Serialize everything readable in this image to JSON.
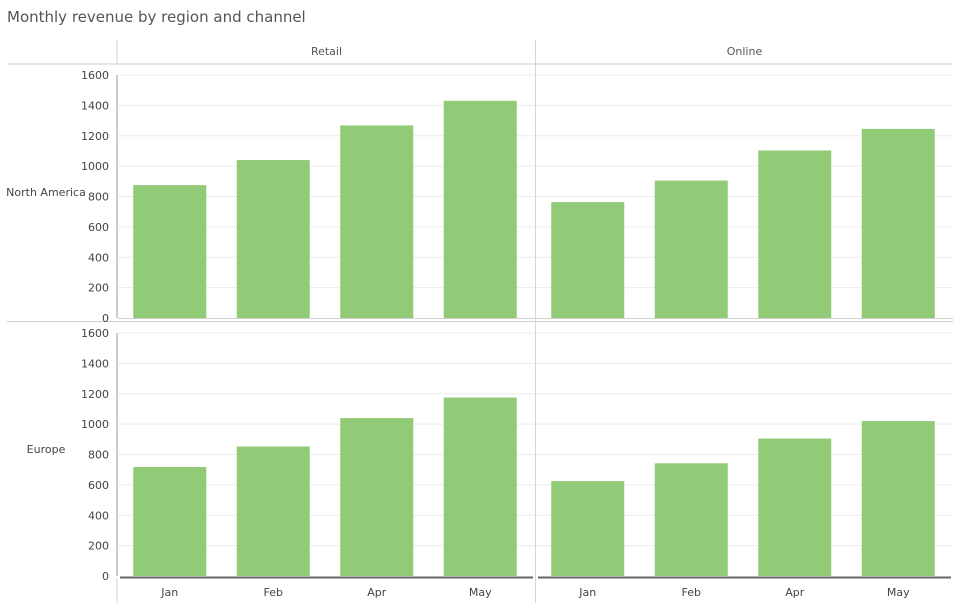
{
  "chart_data": {
    "type": "bar",
    "title": "Monthly revenue by region and channel",
    "categories": [
      "Jan",
      "Feb",
      "Apr",
      "May"
    ],
    "columns": [
      "Retail",
      "Online"
    ],
    "rows": [
      "North America",
      "Europe"
    ],
    "ylim": [
      0,
      1600
    ],
    "yticks": [
      "0",
      "200",
      "400",
      "600",
      "800",
      "1000",
      "1200",
      "1400",
      "1600"
    ],
    "grid": true,
    "bar_color": "#92cb77",
    "panels": [
      {
        "row": "North America",
        "column": "Retail",
        "values": [
          875,
          1040,
          1268,
          1430
        ]
      },
      {
        "row": "North America",
        "column": "Online",
        "values": [
          763,
          905,
          1103,
          1245
        ]
      },
      {
        "row": "Europe",
        "column": "Retail",
        "values": [
          718,
          853,
          1040,
          1175
        ]
      },
      {
        "row": "Europe",
        "column": "Online",
        "values": [
          625,
          742,
          905,
          1020
        ]
      }
    ]
  }
}
